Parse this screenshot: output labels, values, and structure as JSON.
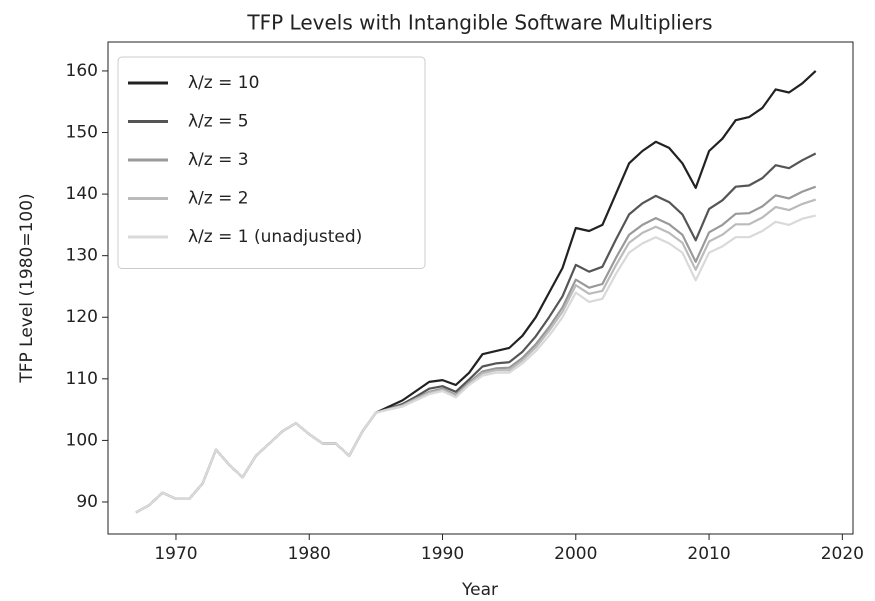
{
  "chart_data": {
    "type": "line",
    "title": "TFP Levels with Intangible Software Multipliers",
    "xlabel": "Year",
    "ylabel": "TFP Level (1980=100)",
    "x": [
      1967,
      1968,
      1969,
      1970,
      1971,
      1972,
      1973,
      1974,
      1975,
      1976,
      1977,
      1978,
      1979,
      1980,
      1981,
      1982,
      1983,
      1984,
      1985,
      1986,
      1987,
      1988,
      1989,
      1990,
      1991,
      1992,
      1993,
      1994,
      1995,
      1996,
      1997,
      1998,
      1999,
      2000,
      2001,
      2002,
      2003,
      2004,
      2005,
      2006,
      2007,
      2008,
      2009,
      2010,
      2011,
      2012,
      2013,
      2014,
      2015,
      2016,
      2017,
      2018
    ],
    "series": [
      {
        "name": "λ/z = 10",
        "color": "#222222",
        "values": [
          88.3,
          89.5,
          91.5,
          90.5,
          90.5,
          93,
          98.5,
          96,
          94,
          97.5,
          99.5,
          101.5,
          102.8,
          101,
          99.5,
          99.5,
          97.5,
          101.5,
          104.5,
          105.5,
          106.5,
          108,
          109.5,
          109.8,
          109,
          111,
          114,
          114.5,
          115,
          117,
          120,
          124,
          128,
          134.5,
          134,
          135,
          140,
          145,
          147,
          148.5,
          147.5,
          145,
          141,
          147,
          149,
          152,
          152.5,
          154,
          157,
          156.5,
          158,
          160
        ]
      },
      {
        "name": "λ/z = 5",
        "color": "#555555",
        "values": [
          88.3,
          89.5,
          91.5,
          90.5,
          90.5,
          93,
          98.5,
          96,
          94,
          97.5,
          99.5,
          101.5,
          102.8,
          101,
          99.5,
          99.5,
          97.5,
          101.5,
          104.5,
          105.2,
          105.9,
          107.1,
          108.4,
          108.8,
          107.9,
          109.9,
          112.0,
          112.5,
          112.7,
          114.4,
          116.9,
          120.0,
          123.4,
          128.5,
          127.4,
          128.2,
          132.6,
          136.7,
          138.5,
          139.7,
          138.7,
          136.7,
          132.5,
          137.6,
          139.0,
          141.2,
          141.4,
          142.6,
          144.7,
          144.2,
          145.5,
          146.6
        ]
      },
      {
        "name": "λ/z = 3",
        "color": "#999999",
        "values": [
          88.3,
          89.5,
          91.5,
          90.5,
          90.5,
          93,
          98.5,
          96,
          94,
          97.5,
          99.5,
          101.5,
          102.8,
          101,
          99.5,
          99.5,
          97.5,
          101.5,
          104.5,
          105.1,
          105.7,
          106.8,
          107.9,
          108.4,
          107.4,
          109.4,
          111.2,
          111.7,
          111.8,
          113.4,
          115.6,
          118.4,
          121.6,
          126.1,
          124.8,
          125.4,
          129.6,
          133.4,
          135.0,
          136.1,
          135.1,
          133.4,
          129.0,
          133.8,
          135.0,
          136.8,
          136.9,
          138.0,
          139.8,
          139.3,
          140.4,
          141.2
        ]
      },
      {
        "name": "λ/z = 2",
        "color": "#bbbbbb",
        "values": [
          88.3,
          89.5,
          91.5,
          90.5,
          90.5,
          93,
          98.5,
          96,
          94,
          97.5,
          99.5,
          101.5,
          102.8,
          101,
          99.5,
          99.5,
          97.5,
          101.5,
          104.5,
          105.1,
          105.6,
          106.7,
          107.7,
          108.2,
          107.2,
          109.2,
          110.9,
          111.4,
          111.4,
          113.0,
          115.1,
          117.8,
          120.9,
          125.2,
          123.8,
          124.3,
          128.4,
          132.1,
          133.7,
          134.7,
          133.7,
          132.1,
          127.7,
          132.3,
          133.4,
          135.1,
          135.1,
          136.2,
          137.9,
          137.4,
          138.4,
          139.1
        ]
      },
      {
        "name": "λ/z = 1 (unadjusted)",
        "color": "#d9d9d9",
        "values": [
          88.3,
          89.5,
          91.5,
          90.5,
          90.5,
          93,
          98.5,
          96,
          94,
          97.5,
          99.5,
          101.5,
          102.8,
          101,
          99.5,
          99.5,
          97.5,
          101.5,
          104.5,
          105,
          105.5,
          106.5,
          107.5,
          108,
          107,
          109,
          110.5,
          111,
          111,
          112.5,
          114.5,
          117,
          120,
          124,
          122.5,
          123,
          127,
          130.5,
          132,
          133,
          132,
          130.5,
          126,
          130.5,
          131.5,
          133,
          133,
          134,
          135.5,
          135,
          136,
          136.5
        ]
      }
    ],
    "xlim": [
      1964.9,
      2020.8
    ],
    "xticks": [
      1970,
      1980,
      1990,
      2000,
      2010,
      2020
    ],
    "ylim": [
      84.8,
      164.7
    ],
    "yticks": [
      90,
      100,
      110,
      120,
      130,
      140,
      150,
      160
    ],
    "legend": "upper left"
  }
}
